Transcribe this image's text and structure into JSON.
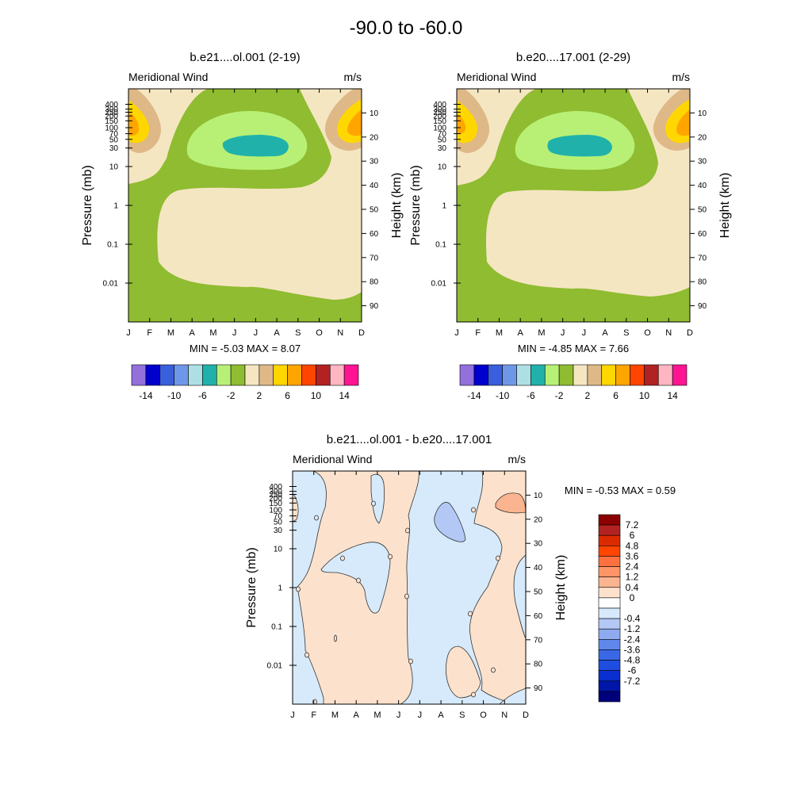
{
  "page_title": "-90.0 to -60.0",
  "colors": {
    "cb1": [
      "#9370db",
      "#0000cd",
      "#3a5fdc",
      "#6f97e8",
      "#aedfe4",
      "#20b2aa",
      "#b8f075",
      "#8fbc30",
      "#f5e6c2",
      "#deb887",
      "#ffd700",
      "#ffa500",
      "#ff4500",
      "#b22222",
      "#ffb6c1",
      "#ff1493"
    ],
    "cb2": [
      "#8b0000",
      "#b22222",
      "#dc2a00",
      "#ff4500",
      "#ff7040",
      "#ff9566",
      "#fbb490",
      "#fce2cd",
      "#ffffff",
      "#d6eafb",
      "#b4c8f6",
      "#8fabf0",
      "#5f88ea",
      "#3a67e6",
      "#1f4de0",
      "#0a2fd0",
      "#0016a8",
      "#00007a"
    ]
  },
  "chart_data": [
    {
      "type": "heatmap",
      "title": "b.e21....ol.001 (2-19)",
      "left_string": "Meridional Wind",
      "right_string": "m/s",
      "ylabel": "Pressure (mb)",
      "ylabel_right": "Height (km)",
      "x_ticks": [
        "J",
        "F",
        "M",
        "A",
        "M",
        "J",
        "J",
        "A",
        "S",
        "O",
        "N",
        "D"
      ],
      "y_ticks": [
        "0.01",
        "0.1",
        "1",
        "10",
        "30",
        "50",
        "70",
        "100",
        "150",
        "200",
        "250",
        "300",
        "400"
      ],
      "y_ticks_right": [
        "90",
        "80",
        "70",
        "60",
        "50",
        "40",
        "30",
        "20",
        "10"
      ],
      "stats": {
        "min_label": "MIN =",
        "min": "-5.03",
        "max_label": "MAX =",
        "max": "8.07"
      },
      "colorbar": {
        "labels": [
          "-14",
          "-10",
          "-6",
          "-2",
          "2",
          "6",
          "10",
          "14"
        ]
      }
    },
    {
      "type": "heatmap",
      "title": "b.e20....17.001 (2-29)",
      "left_string": "Meridional Wind",
      "right_string": "m/s",
      "ylabel": "Pressure (mb)",
      "ylabel_right": "Height (km)",
      "x_ticks": [
        "J",
        "F",
        "M",
        "A",
        "M",
        "J",
        "J",
        "A",
        "S",
        "O",
        "N",
        "D"
      ],
      "y_ticks": [
        "0.01",
        "0.1",
        "1",
        "10",
        "30",
        "50",
        "70",
        "100",
        "150",
        "200",
        "250",
        "300",
        "400"
      ],
      "y_ticks_right": [
        "90",
        "80",
        "70",
        "60",
        "50",
        "40",
        "30",
        "20",
        "10"
      ],
      "stats": {
        "min_label": "MIN =",
        "min": "-4.85",
        "max_label": "MAX =",
        "max": "7.66"
      },
      "colorbar": {
        "labels": [
          "-14",
          "-10",
          "-6",
          "-2",
          "2",
          "6",
          "10",
          "14"
        ]
      }
    },
    {
      "type": "heatmap",
      "title": "b.e21....ol.001 - b.e20....17.001",
      "left_string": "Meridional Wind",
      "right_string": "m/s",
      "ylabel": "Pressure (mb)",
      "ylabel_right": "Height (km)",
      "x_ticks": [
        "J",
        "F",
        "M",
        "A",
        "M",
        "J",
        "J",
        "A",
        "S",
        "O",
        "N",
        "D"
      ],
      "y_ticks": [
        "0.01",
        "0.1",
        "1",
        "10",
        "30",
        "50",
        "70",
        "100",
        "150",
        "200",
        "250",
        "300",
        "400"
      ],
      "y_ticks_right": [
        "90",
        "80",
        "70",
        "60",
        "50",
        "40",
        "30",
        "20",
        "10"
      ],
      "stats": {
        "min_label": "MIN =",
        "min": "-0.53",
        "max_label": "MAX =",
        "max": "0.59"
      },
      "colorbar": {
        "labels": [
          "7.2",
          "6",
          "4.8",
          "3.6",
          "2.4",
          "1.2",
          "0.4",
          "0",
          "-0.4",
          "-1.2",
          "-2.4",
          "-3.6",
          "-4.8",
          "-6",
          "-7.2"
        ]
      }
    }
  ]
}
